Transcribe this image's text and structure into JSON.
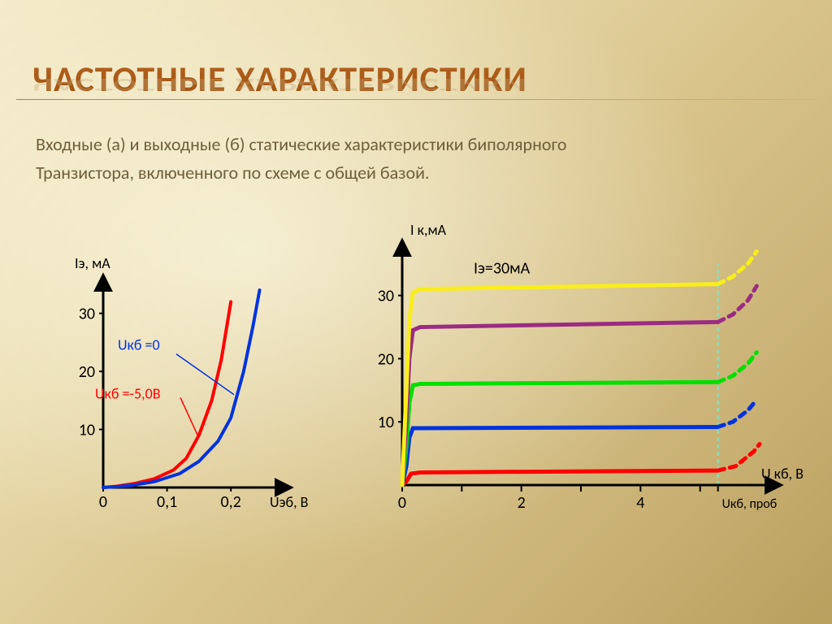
{
  "title": "ЧАСТОТНЫЕ ХАРАКТЕРИСТИКИ",
  "subtitle_line1": "Входные (а) и выходные (б) статические характеристики биполярного",
  "subtitle_line2": "Транзистора, включенного по схеме с общей базой.",
  "chartA": {
    "type": "line",
    "xlim": [
      0,
      0.28
    ],
    "ylim": [
      0,
      35
    ],
    "xticks": [
      0,
      0.1,
      0.2
    ],
    "xtick_labels": [
      "0",
      "0,1",
      "0,2"
    ],
    "yticks": [
      10,
      20,
      30
    ],
    "ytick_labels": [
      "10",
      "20",
      "30"
    ],
    "y_axis_title": "Iэ, мА",
    "x_axis_title": "Uэб, В",
    "axis_color": "#000000",
    "axis_width": 3,
    "label_fontsize": 18,
    "tick_fontsize": 20,
    "curve_width": 4,
    "curves": [
      {
        "color": "#ff0000",
        "label": "Uкб =-5,0В",
        "label_color": "#ff0000",
        "points": [
          [
            0,
            0
          ],
          [
            0.02,
            0.2
          ],
          [
            0.05,
            0.7
          ],
          [
            0.08,
            1.5
          ],
          [
            0.11,
            3
          ],
          [
            0.13,
            5
          ],
          [
            0.15,
            9
          ],
          [
            0.17,
            15
          ],
          [
            0.185,
            22
          ],
          [
            0.2,
            32
          ]
        ]
      },
      {
        "color": "#0033dd",
        "label": "Uкб =0",
        "label_color": "#0033dd",
        "points": [
          [
            0,
            0
          ],
          [
            0.04,
            0.3
          ],
          [
            0.08,
            1.0
          ],
          [
            0.12,
            2.4
          ],
          [
            0.15,
            4.5
          ],
          [
            0.18,
            8
          ],
          [
            0.2,
            12
          ],
          [
            0.22,
            20
          ],
          [
            0.235,
            28
          ],
          [
            0.245,
            34
          ]
        ]
      }
    ],
    "callout_line_color": "#0033dd",
    "callout_line_color_2": "#ff0000"
  },
  "chartB": {
    "type": "line",
    "xlim": [
      0,
      6
    ],
    "ylim": [
      0,
      36
    ],
    "xticks": [
      0,
      2,
      4
    ],
    "xtick_labels": [
      "0",
      "2",
      "4"
    ],
    "yticks": [
      10,
      20,
      30
    ],
    "ytick_labels": [
      "10",
      "20",
      "30"
    ],
    "y_axis_title": "I к,мА",
    "x_axis_title": "U кб, В",
    "breakdown_tick_label": "Uкб, проб",
    "breakdown_x": 5.3,
    "breakdown_line_color": "#7fe6c4",
    "annotation": "Iэ=30мА",
    "annotation_color": "#000000",
    "annotation_fontsize": 20,
    "axis_color": "#000000",
    "axis_width": 3,
    "curve_width": 5,
    "label_fontsize": 18,
    "tick_fontsize": 20,
    "x_subticks": [
      1,
      3,
      5
    ],
    "series": [
      {
        "color": "#ff0000",
        "plateau": 2,
        "solid": [
          [
            0,
            0
          ],
          [
            0.07,
            0.6
          ],
          [
            0.15,
            1.8
          ],
          [
            0.3,
            2.0
          ],
          [
            5.3,
            2.3
          ]
        ],
        "dash": [
          [
            5.3,
            2.3
          ],
          [
            5.6,
            3.0
          ],
          [
            5.9,
            5.3
          ],
          [
            6.0,
            6.5
          ]
        ]
      },
      {
        "color": "#0033dd",
        "plateau": 9,
        "solid": [
          [
            0,
            0
          ],
          [
            0.07,
            3
          ],
          [
            0.12,
            7.5
          ],
          [
            0.18,
            9.0
          ],
          [
            0.3,
            9.0
          ],
          [
            5.3,
            9.2
          ]
        ],
        "dash": [
          [
            5.3,
            9.2
          ],
          [
            5.55,
            10.0
          ],
          [
            5.8,
            11.8
          ],
          [
            5.95,
            13.5
          ]
        ]
      },
      {
        "color": "#00e000",
        "plateau": 16,
        "solid": [
          [
            0,
            0
          ],
          [
            0.07,
            6
          ],
          [
            0.12,
            13
          ],
          [
            0.18,
            15.8
          ],
          [
            0.3,
            16.0
          ],
          [
            5.3,
            16.3
          ]
        ],
        "dash": [
          [
            5.3,
            16.3
          ],
          [
            5.55,
            17.3
          ],
          [
            5.8,
            19.2
          ],
          [
            5.95,
            21.0
          ]
        ]
      },
      {
        "color": "#9a2b83",
        "plateau": 25,
        "solid": [
          [
            0,
            0
          ],
          [
            0.07,
            10
          ],
          [
            0.12,
            20
          ],
          [
            0.18,
            24.5
          ],
          [
            0.3,
            25.0
          ],
          [
            5.3,
            25.8
          ]
        ],
        "dash": [
          [
            5.3,
            25.8
          ],
          [
            5.55,
            27.0
          ],
          [
            5.8,
            29.2
          ],
          [
            5.95,
            31.5
          ]
        ]
      },
      {
        "color": "#f9ee1a",
        "plateau": 31,
        "solid": [
          [
            0,
            0
          ],
          [
            0.07,
            15
          ],
          [
            0.12,
            26
          ],
          [
            0.18,
            30.5
          ],
          [
            0.3,
            31.0
          ],
          [
            5.3,
            31.8
          ]
        ],
        "dash": [
          [
            5.3,
            31.8
          ],
          [
            5.55,
            33.0
          ],
          [
            5.8,
            35.0
          ],
          [
            5.95,
            37.0
          ]
        ]
      }
    ]
  }
}
